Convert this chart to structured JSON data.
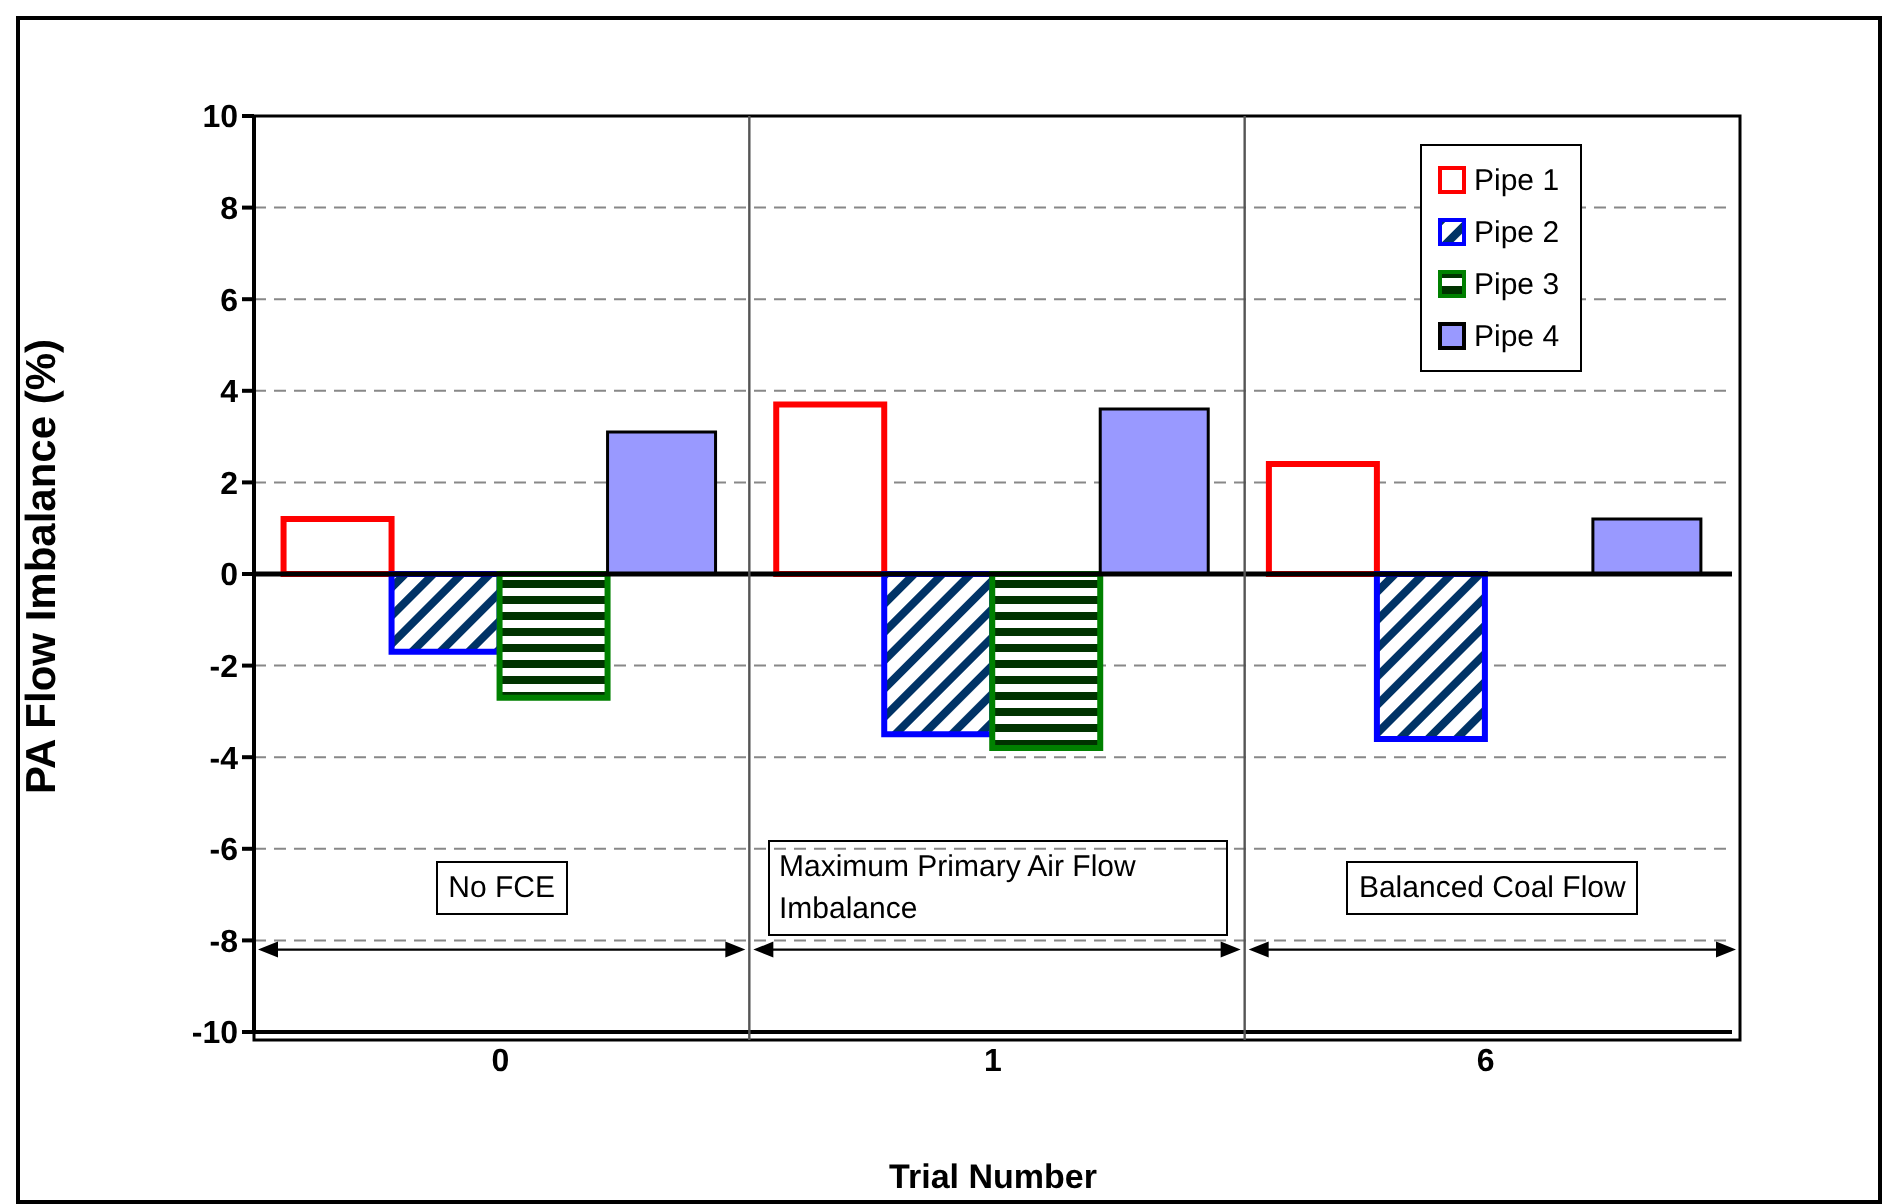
{
  "chart_data": {
    "type": "bar",
    "xlabel": "Trial Number",
    "ylabel": "PA Flow Imbalance (%)",
    "categories": [
      "0",
      "1",
      "6"
    ],
    "series": [
      {
        "name": "Pipe 1",
        "color": "#ff0000",
        "values": [
          1.2,
          3.7,
          2.4
        ]
      },
      {
        "name": "Pipe 2",
        "color": "#0000ff",
        "values": [
          -1.7,
          -3.5,
          -3.6
        ]
      },
      {
        "name": "Pipe 3",
        "color": "#008000",
        "values": [
          -2.7,
          -3.8,
          null
        ]
      },
      {
        "name": "Pipe 4",
        "color": "#9999ff",
        "values": [
          3.1,
          3.6,
          1.2
        ]
      }
    ],
    "ylim": [
      -10,
      10
    ],
    "yticks": [
      -10,
      -8,
      -6,
      -4,
      -2,
      0,
      2,
      4,
      6,
      8,
      10
    ],
    "grid": "y",
    "legend": "top right",
    "ref_lines": [
      {
        "axis": "y",
        "value": 0,
        "color": "#000000"
      }
    ],
    "annotations": [
      "No FCE",
      "Maximum Primary Air Flow Imbalance",
      "Balanced Coal Flow"
    ]
  }
}
